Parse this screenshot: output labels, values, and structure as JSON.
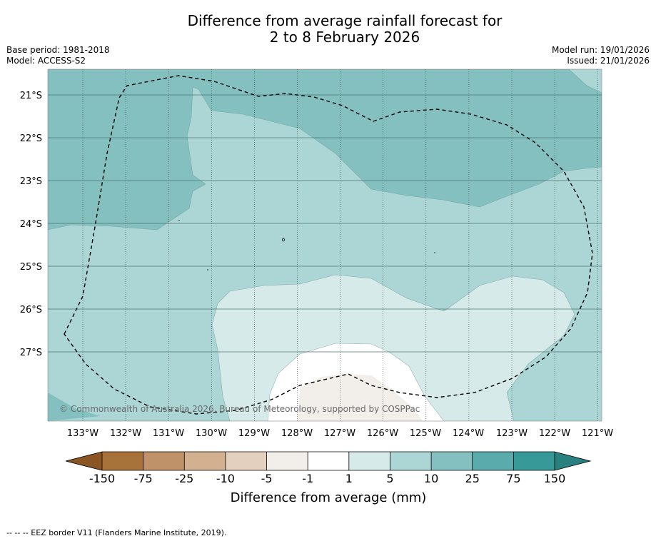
{
  "title_line1": "Difference from average rainfall forecast for",
  "title_line2": "2 to 8 February 2026",
  "meta_left": {
    "base_period": "Base period: 1981-2018",
    "model": "Model: ACCESS-S2"
  },
  "meta_right": {
    "model_run": "Model run: 19/01/2026",
    "issued": "Issued: 21/01/2026"
  },
  "lat_labels": [
    "21°S",
    "22°S",
    "23°S",
    "24°S",
    "25°S",
    "26°S",
    "27°S"
  ],
  "lon_labels": [
    "133°W",
    "132°W",
    "131°W",
    "130°W",
    "129°W",
    "128°W",
    "127°W",
    "126°W",
    "125°W",
    "124°W",
    "123°W",
    "122°W",
    "121°W"
  ],
  "copyright": "© Commonwealth of Australia 2026, Bureau of Meteorology, supported by COSPPac",
  "colorbar": {
    "labels": [
      "-150",
      "-75",
      "-25",
      "-10",
      "-5",
      "-1",
      "1",
      "5",
      "10",
      "25",
      "75",
      "150"
    ],
    "colors": [
      "#a8733a",
      "#c0926a",
      "#d3b08f",
      "#e4d0bf",
      "#f2eee9",
      "#ffffff",
      "#d6eaea",
      "#acd6d6",
      "#84c0c0",
      "#5aacac",
      "#389999"
    ],
    "low_extend_color": "#8a5522",
    "high_extend_color": "#2a7f7f",
    "label": "Difference from average (mm)"
  },
  "map_colors": {
    "c5_10": "#acd6d6",
    "c10_25": "#84c0c0",
    "c1_5": "#d6eaea",
    "c_neutral": "#ffffff",
    "c_dry": "#f2eee9"
  },
  "footer": "--  --  -- EEZ border V11 (Flanders Marine Institute, 2019)."
}
